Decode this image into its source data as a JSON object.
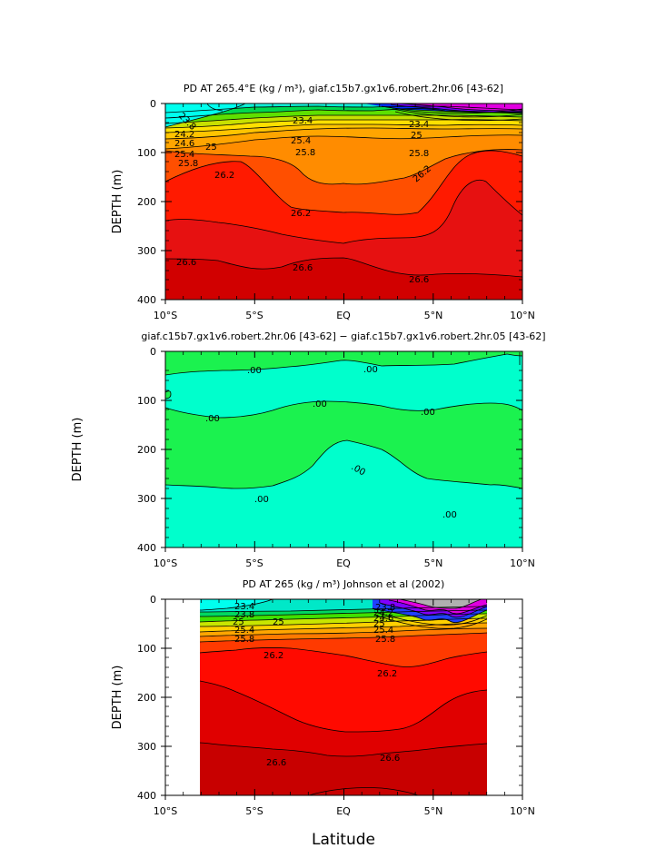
{
  "figure": {
    "xlabel": "Latitude",
    "ylabel": "DEPTH (m)"
  },
  "chart_data": [
    {
      "type": "contour",
      "title": "PD AT 265.4°E (kg / m³), giaf.c15b7.gx1v6.robert.2hr.06 [43-62]",
      "xlabel": "",
      "ylabel": "DEPTH (m)",
      "xlim": [
        -10,
        10
      ],
      "ylim": [
        400,
        0
      ],
      "x_ticks": [
        "10°S",
        "5°S",
        "EQ",
        "5°N",
        "10°N"
      ],
      "y_ticks": [
        "0",
        "100",
        "200",
        "300",
        "400"
      ],
      "contour_labels": [
        "23.8",
        "23.4",
        "24.2",
        "24.6",
        "25",
        "25.4",
        "25.8",
        "25.4",
        "25.8",
        "26.2",
        "26.2",
        "26.2",
        "26.6",
        "26.6",
        "26.6",
        "25.8",
        "23.4",
        "25"
      ],
      "contours": [
        {
          "level": 23.8,
          "x": [
            -10,
            -8,
            -6,
            -4
          ],
          "y": [
            18,
            22,
            25,
            20
          ]
        },
        {
          "level": 24.2,
          "x": [
            -10,
            -7,
            -4,
            -2,
            0
          ],
          "y": [
            38,
            44,
            40,
            34,
            30
          ]
        },
        {
          "level": 24.6,
          "x": [
            -10,
            -7,
            -4,
            -2,
            0,
            2,
            4,
            6,
            8,
            10
          ],
          "y": [
            50,
            55,
            50,
            42,
            38,
            36,
            34,
            36,
            34,
            32
          ]
        },
        {
          "level": 25.0,
          "x": [
            -10,
            -7,
            -4,
            -2,
            0,
            2,
            4,
            6,
            8,
            10
          ],
          "y": [
            60,
            64,
            58,
            50,
            44,
            42,
            40,
            44,
            42,
            40
          ]
        },
        {
          "level": 25.4,
          "x": [
            -10,
            -7,
            -4,
            -2,
            0,
            2,
            4,
            6,
            8,
            10
          ],
          "y": [
            72,
            74,
            68,
            60,
            54,
            52,
            50,
            54,
            52,
            50
          ]
        },
        {
          "level": 25.8,
          "x": [
            -10,
            -7,
            -4,
            -2,
            0,
            2,
            4,
            6,
            8,
            10
          ],
          "y": [
            92,
            90,
            82,
            78,
            78,
            76,
            74,
            72,
            66,
            62
          ]
        },
        {
          "level": 26.2,
          "x": [
            -10,
            -8,
            -6,
            -5,
            -4,
            -3,
            -2,
            -1,
            0,
            1,
            2,
            3,
            4,
            5,
            6,
            7,
            8,
            9,
            10
          ],
          "y": [
            160,
            140,
            128,
            130,
            160,
            205,
            220,
            225,
            222,
            224,
            225,
            215,
            185,
            150,
            120,
            100,
            95,
            100,
            110
          ]
        },
        {
          "level": 26.4,
          "x": [
            -10,
            -8,
            -6,
            -5,
            -4,
            -2,
            0,
            2,
            4,
            6,
            7,
            8,
            9,
            10
          ],
          "y": [
            235,
            232,
            240,
            250,
            268,
            282,
            285,
            285,
            270,
            230,
            192,
            182,
            205,
            230
          ]
        },
        {
          "level": 26.6,
          "x": [
            -10,
            -8,
            -6,
            -4,
            -2,
            0,
            2,
            4,
            6,
            8,
            10
          ],
          "y": [
            310,
            325,
            340,
            345,
            335,
            325,
            330,
            348,
            352,
            345,
            352
          ]
        }
      ]
    },
    {
      "type": "contour",
      "title": "giaf.c15b7.gx1v6.robert.2hr.06 [43-62] − giaf.c15b7.gx1v6.robert.2hr.05 [43-62]",
      "xlabel": "",
      "ylabel": "DEPTH (m)",
      "xlim": [
        -10,
        10
      ],
      "ylim": [
        400,
        0
      ],
      "x_ticks": [
        "10°S",
        "5°S",
        "EQ",
        "5°N",
        "10°N"
      ],
      "y_ticks": [
        "0",
        "100",
        "200",
        "300",
        "400"
      ],
      "contour_labels": [
        ".00",
        ".00",
        ".00",
        ".00",
        ".00",
        ".00",
        ".00",
        ".00"
      ],
      "contours": [
        {
          "level": 0,
          "x": [
            -10,
            -8,
            -6,
            -4,
            -2,
            0,
            2,
            4,
            6,
            7,
            8,
            10
          ],
          "y": [
            48,
            45,
            40,
            35,
            30,
            22,
            30,
            30,
            25,
            20,
            5,
            5
          ]
        },
        {
          "level": 0,
          "x": [
            -10,
            -8,
            -6,
            -4,
            -2,
            0,
            2,
            4,
            6,
            8,
            10
          ],
          "y": [
            115,
            130,
            135,
            128,
            105,
            100,
            105,
            118,
            115,
            105,
            118
          ]
        },
        {
          "level": 0,
          "x": [
            -10,
            -8,
            -6,
            -4,
            -3,
            -2,
            -1,
            0,
            1,
            2,
            3,
            4,
            5,
            6,
            8,
            10
          ],
          "y": [
            282,
            300,
            305,
            295,
            265,
            238,
            225,
            222,
            240,
            268,
            300,
            318,
            325,
            330,
            335,
            350
          ]
        }
      ]
    },
    {
      "type": "contour",
      "title": "PD AT 265 (kg / m³) Johnson et al (2002)",
      "xlabel": "Latitude",
      "ylabel": "DEPTH (m)",
      "xlim": [
        -10,
        10
      ],
      "ylim": [
        400,
        0
      ],
      "data_extent_x": [
        -8,
        8
      ],
      "x_ticks": [
        "10°S",
        "5°S",
        "EQ",
        "5°N",
        "10°N"
      ],
      "y_ticks": [
        "0",
        "100",
        "200",
        "300",
        "400"
      ],
      "contour_labels": [
        "23.4",
        "23.8",
        "25",
        "25",
        "25.4",
        "25.8",
        "26.2",
        "26.2",
        "26.6",
        "26.6",
        "25.8",
        "25.4",
        "25",
        "24.6",
        "24.2",
        "23.8"
      ],
      "contours": [
        {
          "level": 23.8,
          "x": [
            -8,
            -6,
            -4,
            -2,
            0,
            2,
            4,
            6,
            8
          ],
          "y": [
            25,
            22,
            20,
            18,
            15,
            15,
            14,
            12,
            12
          ]
        },
        {
          "level": 24.6,
          "x": [
            -8,
            -6,
            -4,
            -2,
            0,
            2,
            4,
            6,
            8
          ],
          "y": [
            45,
            42,
            40,
            36,
            32,
            30,
            28,
            26,
            24
          ]
        },
        {
          "level": 25.0,
          "x": [
            -8,
            -6,
            -4,
            -2,
            0,
            2,
            4,
            6,
            8
          ],
          "y": [
            55,
            52,
            50,
            45,
            42,
            40,
            38,
            36,
            35
          ]
        },
        {
          "level": 25.4,
          "x": [
            -8,
            -6,
            -4,
            -2,
            0,
            2,
            4,
            6,
            8
          ],
          "y": [
            65,
            62,
            60,
            55,
            52,
            50,
            48,
            46,
            45
          ]
        },
        {
          "level": 25.8,
          "x": [
            -8,
            -6,
            -4,
            -2,
            0,
            2,
            4,
            6,
            8
          ],
          "y": [
            88,
            85,
            82,
            80,
            78,
            76,
            74,
            72,
            70
          ]
        },
        {
          "level": 26.2,
          "x": [
            -8,
            -6,
            -4,
            -2,
            0,
            2,
            4,
            6,
            8
          ],
          "y": [
            110,
            105,
            100,
            105,
            110,
            120,
            140,
            130,
            115
          ]
        },
        {
          "level": 26.4,
          "x": [
            -8,
            -6,
            -4,
            -2,
            0,
            2,
            4,
            6,
            8
          ],
          "y": [
            170,
            190,
            215,
            245,
            265,
            265,
            250,
            210,
            185
          ]
        },
        {
          "level": 26.6,
          "x": [
            -8,
            -6,
            -4,
            -2,
            0,
            2,
            4,
            6,
            8
          ],
          "y": [
            295,
            310,
            325,
            330,
            320,
            315,
            310,
            300,
            295
          ]
        },
        {
          "level": 26.8,
          "x": [
            -4,
            -2,
            0,
            2,
            4
          ],
          "y": [
            400,
            390,
            385,
            390,
            400
          ]
        }
      ]
    }
  ]
}
